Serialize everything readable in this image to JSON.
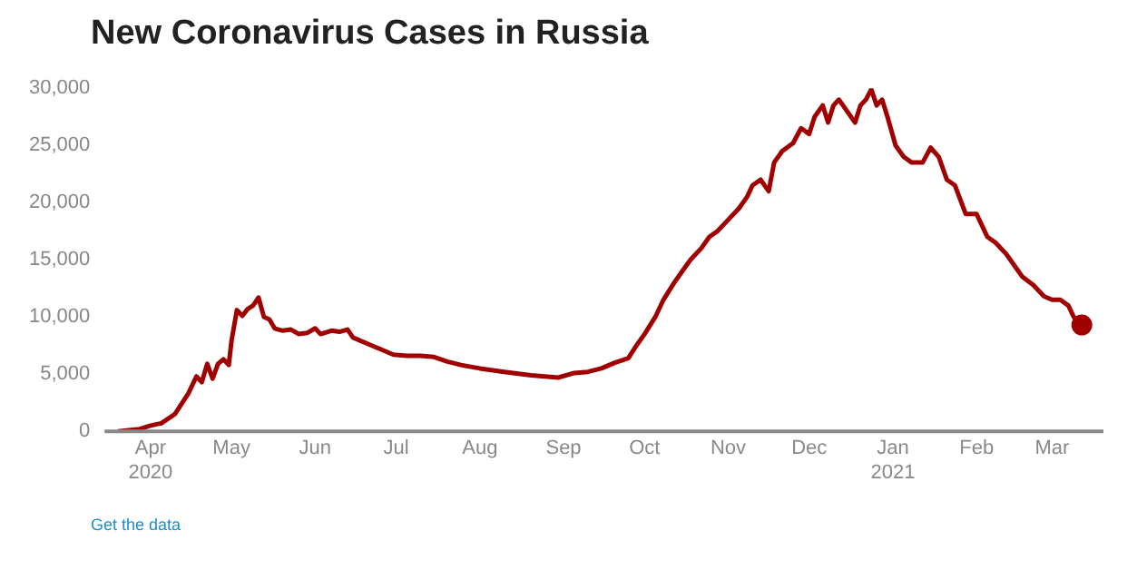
{
  "chart_data": {
    "type": "line",
    "title": "New Coronavirus Cases in Russia",
    "x": [
      "2020-03-20",
      "2020-03-28",
      "2020-04-01",
      "2020-04-05",
      "2020-04-10",
      "2020-04-15",
      "2020-04-18",
      "2020-04-20",
      "2020-04-22",
      "2020-04-24",
      "2020-04-26",
      "2020-04-28",
      "2020-04-30",
      "2020-05-01",
      "2020-05-03",
      "2020-05-05",
      "2020-05-07",
      "2020-05-09",
      "2020-05-11",
      "2020-05-13",
      "2020-05-15",
      "2020-05-17",
      "2020-05-20",
      "2020-05-23",
      "2020-05-26",
      "2020-05-29",
      "2020-06-01",
      "2020-06-03",
      "2020-06-07",
      "2020-06-10",
      "2020-06-13",
      "2020-06-15",
      "2020-06-20",
      "2020-06-25",
      "2020-06-30",
      "2020-07-05",
      "2020-07-10",
      "2020-07-15",
      "2020-07-20",
      "2020-07-25",
      "2020-08-01",
      "2020-08-10",
      "2020-08-20",
      "2020-08-25",
      "2020-08-30",
      "2020-09-05",
      "2020-09-10",
      "2020-09-15",
      "2020-09-20",
      "2020-09-25",
      "2020-09-28",
      "2020-10-01",
      "2020-10-05",
      "2020-10-08",
      "2020-10-12",
      "2020-10-15",
      "2020-10-18",
      "2020-10-22",
      "2020-10-25",
      "2020-10-28",
      "2020-11-01",
      "2020-11-05",
      "2020-11-08",
      "2020-11-10",
      "2020-11-13",
      "2020-11-16",
      "2020-11-18",
      "2020-11-21",
      "2020-11-25",
      "2020-11-28",
      "2020-12-01",
      "2020-12-03",
      "2020-12-06",
      "2020-12-08",
      "2020-12-10",
      "2020-12-12",
      "2020-12-15",
      "2020-12-18",
      "2020-12-20",
      "2020-12-22",
      "2020-12-24",
      "2020-12-26",
      "2020-12-28",
      "2020-12-30",
      "2021-01-02",
      "2021-01-05",
      "2021-01-08",
      "2021-01-12",
      "2021-01-15",
      "2021-01-18",
      "2021-01-21",
      "2021-01-24",
      "2021-01-28",
      "2021-02-01",
      "2021-02-05",
      "2021-02-08",
      "2021-02-12",
      "2021-02-15",
      "2021-02-18",
      "2021-02-22",
      "2021-02-26",
      "2021-03-01",
      "2021-03-04",
      "2021-03-07",
      "2021-03-09",
      "2021-03-12"
    ],
    "series": [
      {
        "color": "#a00000",
        "values": [
          0,
          200,
          500,
          700,
          1500,
          3300,
          4800,
          4300,
          5900,
          4600,
          5900,
          6300,
          5800,
          7900,
          10600,
          10100,
          10700,
          11000,
          11700,
          10000,
          9800,
          9000,
          8800,
          8900,
          8500,
          8600,
          9000,
          8500,
          8800,
          8700,
          8900,
          8200,
          7700,
          7200,
          6700,
          6600,
          6600,
          6500,
          6100,
          5800,
          5500,
          5200,
          4900,
          4800,
          4700,
          5100,
          5200,
          5500,
          6000,
          6400,
          7500,
          8500,
          10000,
          11500,
          13000,
          14000,
          15000,
          16000,
          17000,
          17500,
          18500,
          19500,
          20500,
          21500,
          22000,
          21000,
          23500,
          24500,
          25200,
          26500,
          26000,
          27500,
          28500,
          27000,
          28500,
          29000,
          28000,
          27000,
          28500,
          29000,
          29900,
          28500,
          29000,
          27500,
          25000,
          24000,
          23500,
          23500,
          24800,
          24000,
          22000,
          21500,
          19000,
          19000,
          17000,
          16500,
          15500,
          14500,
          13500,
          12800,
          11800,
          11500,
          11500,
          11000,
          10000,
          9300
        ]
      }
    ],
    "ylim": [
      0,
      30000
    ],
    "yticks": [
      0,
      {
        "value": 5000,
        "label": "5,000"
      },
      {
        "value": 10000,
        "label": "10,000"
      },
      {
        "value": 15000,
        "label": "15,000"
      },
      {
        "value": 20000,
        "label": "20,000"
      },
      {
        "value": 25000,
        "label": "25,000"
      },
      {
        "value": 30000,
        "label": "30,000"
      }
    ],
    "xlim": [
      "2020-03-15",
      "2021-03-20"
    ],
    "xticks": [
      {
        "value": "2020-04-01",
        "label": "Apr\n2020"
      },
      {
        "value": "2020-05-01",
        "label": "May"
      },
      {
        "value": "2020-06-01",
        "label": "Jun"
      },
      {
        "value": "2020-07-01",
        "label": "Jul"
      },
      {
        "value": "2020-08-01",
        "label": "Aug"
      },
      {
        "value": "2020-09-01",
        "label": "Sep"
      },
      {
        "value": "2020-10-01",
        "label": "Oct"
      },
      {
        "value": "2020-11-01",
        "label": "Nov"
      },
      {
        "value": "2020-12-01",
        "label": "Dec"
      },
      {
        "value": "2021-01-01",
        "label": "Jan\n2021"
      },
      {
        "value": "2021-02-01",
        "label": "Feb"
      },
      {
        "value": "2021-03-01",
        "label": "Mar"
      }
    ],
    "grid": false,
    "legend": false,
    "marker": "none",
    "annotations": [
      "Get the data"
    ]
  }
}
